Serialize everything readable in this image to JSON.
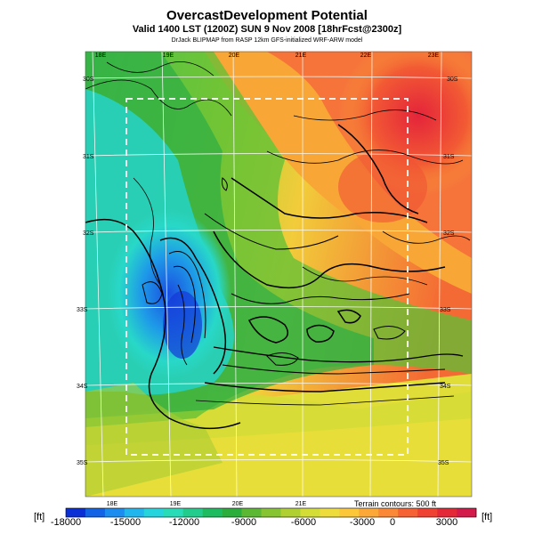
{
  "title": "OvercastDevelopment Potential",
  "subtitle": "Valid 1400 LST (1200Z) SUN 9 Nov 2008 [18hrFcst@2300z]",
  "credit": "DrJack BLIPMAP from RASP 12km GFS-initialized WRF-ARW model",
  "lon_labels_top": [
    "18E",
    "19E",
    "20E",
    "21E",
    "22E",
    "23E"
  ],
  "lon_labels_bottom": [
    "18E",
    "19E",
    "20E",
    "21E"
  ],
  "lat_labels_left": [
    "30S",
    "31S",
    "32S",
    "33S",
    "34S",
    "35S"
  ],
  "lat_labels_right": [
    "30S",
    "31S",
    "32S",
    "33S",
    "34S",
    "35S"
  ],
  "colorbar": {
    "unit_left": "[ft]",
    "unit_right": "[ft]",
    "tick_labels": [
      "-18000",
      "-15000",
      "-12000",
      "-9000",
      "-6000",
      "-3000",
      "0",
      "3000"
    ],
    "colors": [
      "#0a2fd6",
      "#1263e6",
      "#1c8df0",
      "#22b6ee",
      "#26d4de",
      "#28dcb8",
      "#22cc8c",
      "#1ebc60",
      "#2cae3c",
      "#5ab832",
      "#86c432",
      "#b0d032",
      "#d4dc36",
      "#eedc3a",
      "#fcc83a",
      "#fca838",
      "#fa8836",
      "#f66234",
      "#f04232",
      "#e42838",
      "#d41a4a"
    ]
  },
  "terrain_note": "Terrain contours: 500 ft"
}
